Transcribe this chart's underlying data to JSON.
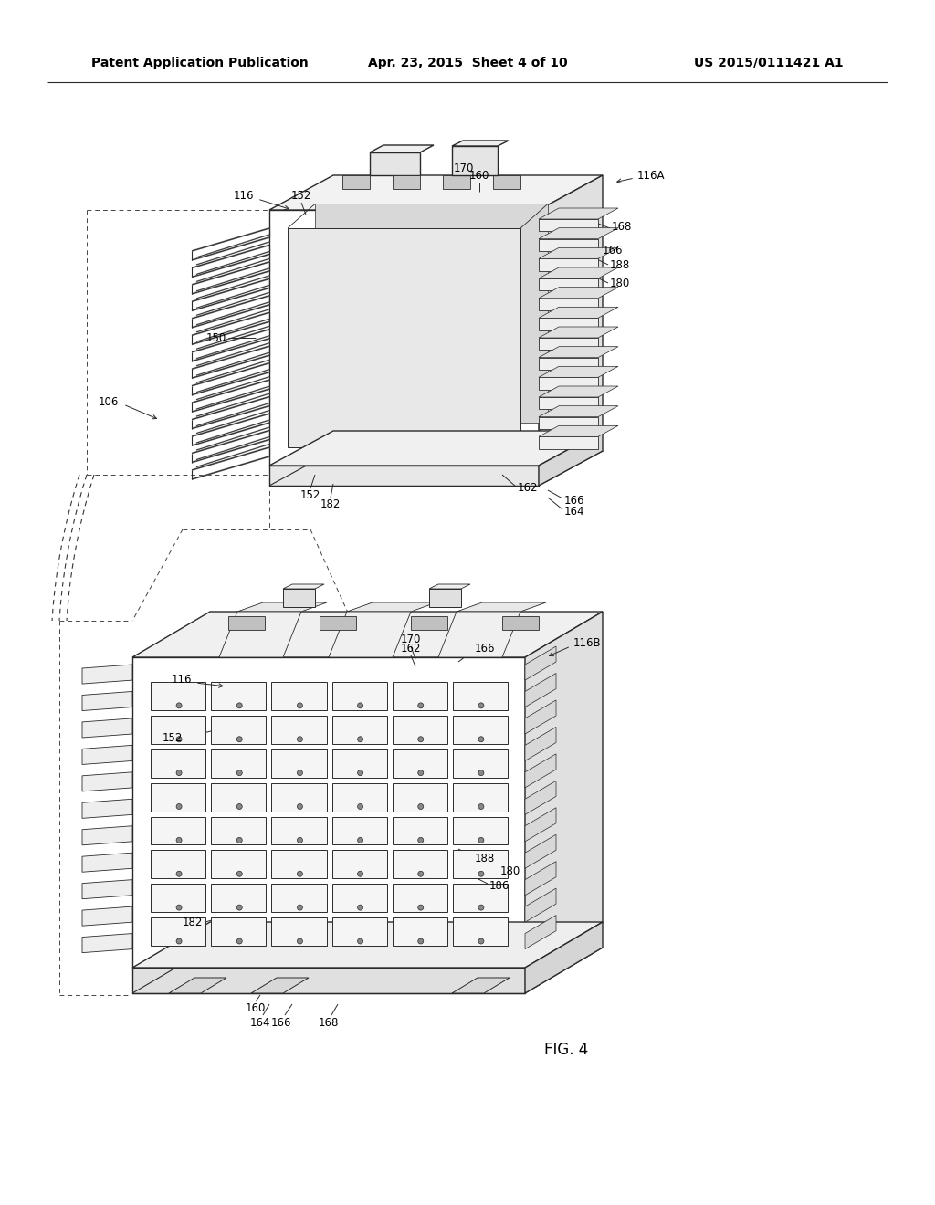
{
  "background_color": "#ffffff",
  "header_left": "Patent Application Publication",
  "header_center": "Apr. 23, 2015  Sheet 4 of 10",
  "header_right": "US 2015/0111421 A1",
  "fig_label": "FIG. 4",
  "line_color": "#2a2a2a",
  "lw": 1.0,
  "tlw": 0.6,
  "lfs": 8.5
}
